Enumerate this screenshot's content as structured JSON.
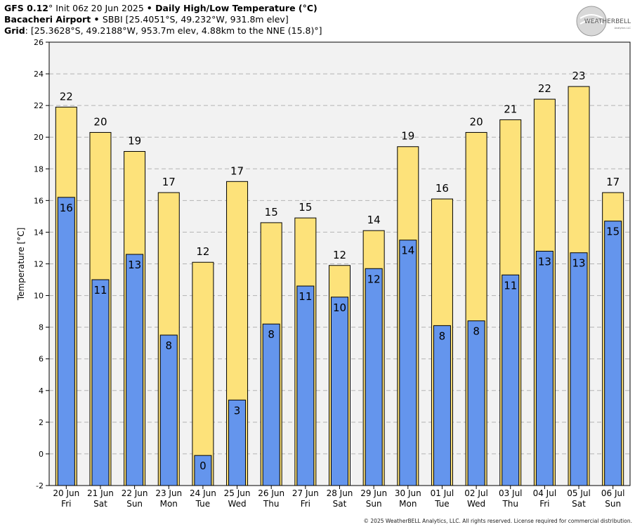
{
  "header": {
    "line1": {
      "model": "GFS 0.12",
      "deg": "°",
      "init": " Init 06z 20 Jun 2025 ",
      "bullet": "•",
      "product": " Daily High/Low Temperature (°C)"
    },
    "line2": {
      "station": "Bacacheri Airport",
      "bullet": " • ",
      "info": "SBBI [25.4051°S, 49.232°W, 931.8m elev]"
    },
    "line3": {
      "label": "Grid",
      "info": ": [25.3628°S, 49.2188°W, 953.7m elev, 4.88km to the NNE (15.8)°]"
    }
  },
  "logo": {
    "text": "WEATHERBELL",
    "subtext": "Analytics LLC"
  },
  "copyright": "© 2025 WeatherBELL Analytics, LLC. All rights reserved. License required for commercial distribution.",
  "chart_data": {
    "type": "bar",
    "title": "Daily High/Low Temperature (°C)",
    "ylabel": "Temperature [°C]",
    "xlabel": "",
    "ylim": [
      -2,
      26
    ],
    "yticks": [
      -2,
      0,
      2,
      4,
      6,
      8,
      10,
      12,
      14,
      16,
      18,
      20,
      22,
      24,
      26
    ],
    "grid": true,
    "categories": [
      "20 Jun",
      "21 Jun",
      "22 Jun",
      "23 Jun",
      "24 Jun",
      "25 Jun",
      "26 Jun",
      "27 Jun",
      "28 Jun",
      "29 Jun",
      "30 Jun",
      "01 Jul",
      "02 Jul",
      "03 Jul",
      "04 Jul",
      "05 Jul",
      "06 Jul"
    ],
    "weekdays": [
      "Fri",
      "Sat",
      "Sun",
      "Mon",
      "Tue",
      "Wed",
      "Thu",
      "Fri",
      "Sat",
      "Sun",
      "Mon",
      "Tue",
      "Wed",
      "Thu",
      "Fri",
      "Sat",
      "Sun"
    ],
    "series": [
      {
        "name": "High",
        "color": "#fde27a",
        "values": [
          21.9,
          20.3,
          19.1,
          16.5,
          12.1,
          17.2,
          14.6,
          14.9,
          11.9,
          14.1,
          19.4,
          16.1,
          20.3,
          21.1,
          22.4,
          23.2,
          16.5
        ],
        "labels": [
          "22",
          "20",
          "19",
          "17",
          "12",
          "17",
          "15",
          "15",
          "12",
          "14",
          "19",
          "16",
          "20",
          "21",
          "22",
          "23",
          "17"
        ]
      },
      {
        "name": "Low",
        "color": "#6495ed",
        "values": [
          16.2,
          11.0,
          12.6,
          7.5,
          -0.1,
          3.4,
          8.2,
          10.6,
          9.9,
          11.7,
          13.5,
          8.1,
          8.4,
          11.3,
          12.8,
          12.7,
          14.7
        ],
        "labels": [
          "16",
          "11",
          "13",
          "8",
          "0",
          "3",
          "8",
          "11",
          "10",
          "12",
          "14",
          "8",
          "8",
          "11",
          "13",
          "13",
          "15"
        ]
      }
    ],
    "plot_background": "#f2f2f2",
    "grid_color": "#b4b4b4"
  }
}
